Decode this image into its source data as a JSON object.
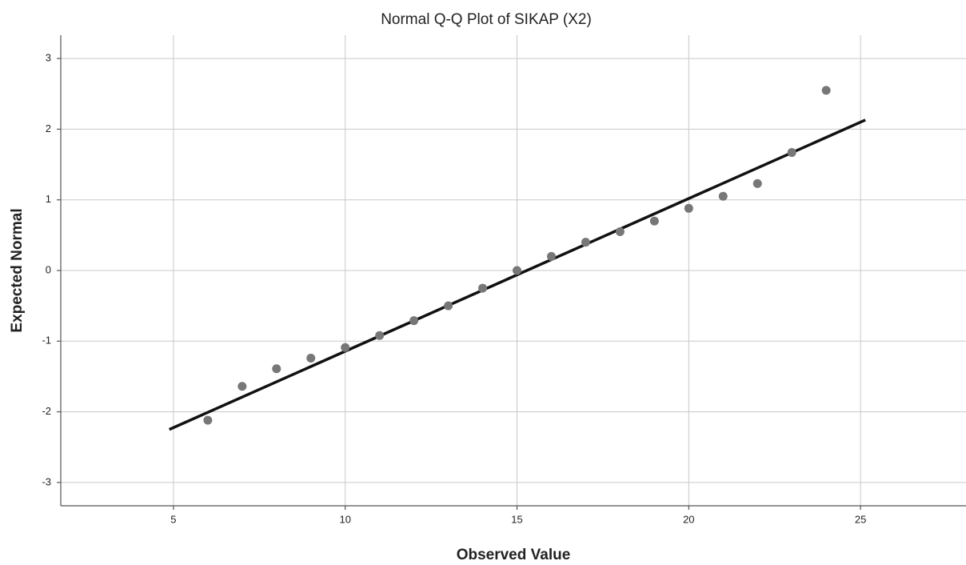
{
  "chart_data": {
    "type": "scatter",
    "title": "Normal Q-Q Plot of SIKAP (X2)",
    "x_label": "Observed Value",
    "y_label": "Expected Normal",
    "x": [
      6,
      7,
      8,
      9,
      10,
      11,
      12,
      13,
      14,
      15,
      16,
      17,
      18,
      19,
      20,
      21,
      22,
      23,
      24
    ],
    "values": [
      -2.12,
      -1.64,
      -1.39,
      -1.24,
      -1.09,
      -0.92,
      -0.71,
      -0.5,
      -0.25,
      0,
      0.2,
      0.4,
      0.55,
      0.7,
      0.88,
      1.05,
      1.23,
      1.67,
      2.55
    ],
    "color": "#777777",
    "reference_line": {
      "x": [
        4.88,
        25.14
      ],
      "y": [
        -2.25,
        2.13
      ],
      "color": "#111111"
    },
    "xlim": [
      1.72,
      28.07
    ],
    "xticks": [
      5,
      10,
      15,
      20,
      25
    ],
    "ylim": [
      -3.33,
      3.33
    ],
    "yticks": [
      -3,
      -2,
      -1,
      0,
      1,
      2,
      3
    ],
    "grid": true
  }
}
